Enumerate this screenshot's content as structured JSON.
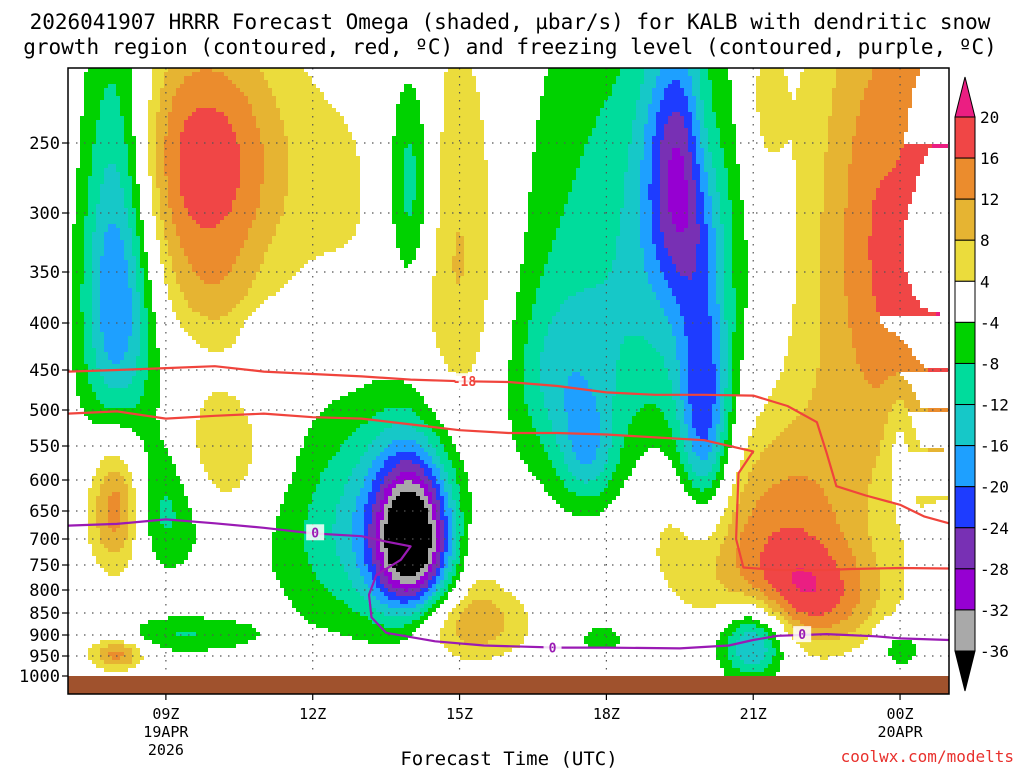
{
  "chart_data": {
    "type": "time-height cross section (filled contour)",
    "title_line1": "2026041907 HRRR Forecast Omega (shaded, µbar/s) for KALB with dendritic snow",
    "title_line2": "growth region (contoured, red, ºC) and freezing level (contoured, purple, ºC)",
    "xlabel": "Forecast Time (UTC)",
    "credit": "coolwx.com/modelts",
    "x_range_hours": [
      7,
      25
    ],
    "x_ticks": [
      {
        "hour": 9,
        "lines": [
          "09Z",
          "19APR",
          "2026"
        ]
      },
      {
        "hour": 12,
        "lines": [
          "12Z"
        ]
      },
      {
        "hour": 15,
        "lines": [
          "15Z"
        ]
      },
      {
        "hour": 18,
        "lines": [
          "18Z"
        ]
      },
      {
        "hour": 21,
        "lines": [
          "21Z"
        ]
      },
      {
        "hour": 24,
        "lines": [
          "00Z",
          "20APR"
        ]
      }
    ],
    "y_ticks_hpa": [
      250,
      300,
      350,
      400,
      450,
      500,
      550,
      600,
      650,
      700,
      750,
      800,
      850,
      900,
      950,
      1000
    ],
    "y_range_hpa": [
      200,
      1000
    ],
    "colorbar": {
      "levels": [
        -36,
        -32,
        -28,
        -24,
        -20,
        -16,
        -12,
        -8,
        -4,
        4,
        8,
        12,
        16,
        20
      ],
      "labels": [
        "20",
        "16",
        "12",
        "8",
        "4",
        "-4",
        "-8",
        "-12",
        "-16",
        "-20",
        "-24",
        "-28",
        "-32",
        "-36"
      ],
      "bins": [
        {
          "range": "below -36",
          "color": "#000000"
        },
        {
          "range": "-36 to -32",
          "color": "#a9a9a9"
        },
        {
          "range": "-32 to -28",
          "color": "#9600d2"
        },
        {
          "range": "-28 to -24",
          "color": "#7830b4"
        },
        {
          "range": "-24 to -20",
          "color": "#1e3cff"
        },
        {
          "range": "-20 to -16",
          "color": "#1ea0ff"
        },
        {
          "range": "-16 to -12",
          "color": "#16c8c8"
        },
        {
          "range": "-12 to -8",
          "color": "#00dc9c"
        },
        {
          "range": "-8 to -4",
          "color": "#00d200"
        },
        {
          "range": "-4 to 4",
          "color": "#ffffff"
        },
        {
          "range": "4 to 8",
          "color": "#ebdc3c"
        },
        {
          "range": "8 to 12",
          "color": "#e6b432"
        },
        {
          "range": "12 to 16",
          "color": "#eb8c2d"
        },
        {
          "range": "16 to 20",
          "color": "#f04646"
        },
        {
          "range": "above 20",
          "color": "#eb1e82"
        }
      ]
    },
    "ground_color": "#a0522d",
    "contour_labels": {
      "dgz": "-18",
      "freezing": "0"
    },
    "dgz_top_hpa": [
      [
        7.0,
        452
      ],
      [
        8.0,
        450
      ],
      [
        9.0,
        448
      ],
      [
        10.0,
        446
      ],
      [
        11.0,
        452
      ],
      [
        12.0,
        455
      ],
      [
        13.0,
        458
      ],
      [
        14.0,
        462
      ],
      [
        15.0,
        464
      ],
      [
        16.0,
        465
      ],
      [
        17.0,
        470
      ],
      [
        18.0,
        478
      ],
      [
        19.0,
        481
      ],
      [
        20.0,
        481
      ],
      [
        21.0,
        482
      ],
      [
        21.7,
        495
      ],
      [
        22.3,
        517
      ],
      [
        22.5,
        560
      ],
      [
        22.7,
        610
      ],
      [
        23.3,
        625
      ],
      [
        24.0,
        640
      ],
      [
        24.5,
        660
      ],
      [
        25.0,
        672
      ]
    ],
    "dgz_bottom_hpa": [
      [
        7.0,
        505
      ],
      [
        8.0,
        502
      ],
      [
        9.0,
        512
      ],
      [
        10.0,
        508
      ],
      [
        11.0,
        505
      ],
      [
        12.0,
        510
      ],
      [
        13.0,
        512
      ],
      [
        14.0,
        520
      ],
      [
        15.0,
        528
      ],
      [
        16.0,
        532
      ],
      [
        17.0,
        532
      ],
      [
        18.0,
        534
      ],
      [
        19.0,
        538
      ],
      [
        20.0,
        542
      ],
      [
        21.0,
        558
      ],
      [
        20.7,
        590
      ],
      [
        20.65,
        700
      ],
      [
        20.8,
        755
      ],
      [
        21.5,
        760
      ],
      [
        22.5,
        760
      ],
      [
        23.0,
        758
      ],
      [
        24.0,
        756
      ],
      [
        25.0,
        757
      ]
    ],
    "freezing_level_hpa": [
      [
        7.0,
        676
      ],
      [
        8.0,
        673
      ],
      [
        9.0,
        665
      ],
      [
        10.0,
        672
      ],
      [
        11.0,
        680
      ],
      [
        12.0,
        690
      ],
      [
        13.0,
        695
      ],
      [
        13.5,
        705
      ],
      [
        14.0,
        714
      ],
      [
        13.8,
        740
      ],
      [
        13.3,
        770
      ],
      [
        13.15,
        810
      ],
      [
        13.2,
        860
      ],
      [
        13.5,
        895
      ],
      [
        14.5,
        915
      ],
      [
        15.5,
        925
      ],
      [
        17.0,
        930
      ],
      [
        18.0,
        930
      ],
      [
        19.5,
        932
      ],
      [
        20.5,
        925
      ],
      [
        21.0,
        912
      ],
      [
        21.5,
        902
      ],
      [
        22.5,
        898
      ],
      [
        23.5,
        903
      ],
      [
        24.0,
        908
      ],
      [
        25.0,
        912
      ]
    ],
    "omega_features": [
      {
        "center": [
          8.0,
          350
        ],
        "radius_h": [
          0.75,
          185
        ],
        "peak": -22
      },
      {
        "center": [
          8.0,
          640
        ],
        "radius_h": [
          0.55,
          115
        ],
        "peak": 17
      },
      {
        "center": [
          8.0,
          945
        ],
        "radius_h": [
          0.55,
          40
        ],
        "peak": 14
      },
      {
        "center": [
          9.0,
          630
        ],
        "radius_h": [
          0.8,
          125
        ],
        "peak": -11
      },
      {
        "center": [
          9.4,
          900
        ],
        "radius_h": [
          1.5,
          45
        ],
        "peak": -8
      },
      {
        "center": [
          9.8,
          265
        ],
        "radius_h": [
          1.7,
          100
        ],
        "peak": 19
      },
      {
        "center": [
          10.0,
          375
        ],
        "radius_h": [
          1.0,
          50
        ],
        "peak": 5
      },
      {
        "center": [
          10.0,
          560
        ],
        "radius_h": [
          1.2,
          100
        ],
        "peak": 9
      },
      {
        "center": [
          11.0,
          410
        ],
        "radius_h": [
          0.35,
          25
        ],
        "peak": -5
      },
      {
        "center": [
          13.3,
          685
        ],
        "radius_h": [
          2.0,
          200
        ],
        "peak": -14
      },
      {
        "center": [
          14.0,
          700
        ],
        "radius_h": [
          0.75,
          140
        ],
        "peak": -36
      },
      {
        "center": [
          14.0,
          280
        ],
        "radius_h": [
          0.5,
          90
        ],
        "peak": -13
      },
      {
        "center": [
          12.8,
          300
        ],
        "radius_h": [
          1.2,
          130
        ],
        "peak": 4
      },
      {
        "center": [
          15.0,
          350
        ],
        "radius_h": [
          1.0,
          200
        ],
        "peak": 10
      },
      {
        "center": [
          15.2,
          870
        ],
        "radius_h": [
          1.2,
          90
        ],
        "peak": 13
      },
      {
        "center": [
          15.4,
          720
        ],
        "radius_h": [
          0.5,
          110
        ],
        "peak": 5
      },
      {
        "center": [
          17.0,
          460
        ],
        "radius_h": [
          1.0,
          100
        ],
        "peak": -8
      },
      {
        "center": [
          17.6,
          560
        ],
        "radius_h": [
          0.6,
          80
        ],
        "peak": -11
      },
      {
        "center": [
          17.9,
          910
        ],
        "radius_h": [
          0.6,
          40
        ],
        "peak": -6
      },
      {
        "center": [
          18.8,
          355
        ],
        "radius_h": [
          2.6,
          235
        ],
        "peak": -12
      },
      {
        "center": [
          19.5,
          270
        ],
        "radius_h": [
          0.7,
          100
        ],
        "peak": -20
      },
      {
        "center": [
          20.0,
          520
        ],
        "radius_h": [
          0.55,
          160
        ],
        "peak": -21
      },
      {
        "center": [
          20.0,
          240
        ],
        "radius_h": [
          0.4,
          60
        ],
        "peak": 6
      },
      {
        "center": [
          19.6,
          680
        ],
        "radius_h": [
          1.0,
          140
        ],
        "peak": 5
      },
      {
        "center": [
          21.2,
          220
        ],
        "radius_h": [
          0.5,
          70
        ],
        "peak": 6
      },
      {
        "center": [
          21.6,
          680
        ],
        "radius_h": [
          1.8,
          200
        ],
        "peak": 14
      },
      {
        "center": [
          21.0,
          915
        ],
        "radius_h": [
          0.7,
          90
        ],
        "peak": -21
      },
      {
        "center": [
          22.2,
          820
        ],
        "radius_h": [
          1.5,
          110
        ],
        "peak": 12
      },
      {
        "center": [
          24.8,
          320
        ],
        "radius_h": [
          2.6,
          230
        ],
        "peak": 22
      },
      {
        "center": [
          23.9,
          240
        ],
        "radius_h": [
          0.4,
          50
        ],
        "peak": -3
      },
      {
        "center": [
          24.0,
          540
        ],
        "radius_h": [
          0.3,
          95
        ],
        "peak": -6
      },
      {
        "center": [
          24.0,
          930
        ],
        "radius_h": [
          0.55,
          60
        ],
        "peak": -7
      }
    ]
  }
}
